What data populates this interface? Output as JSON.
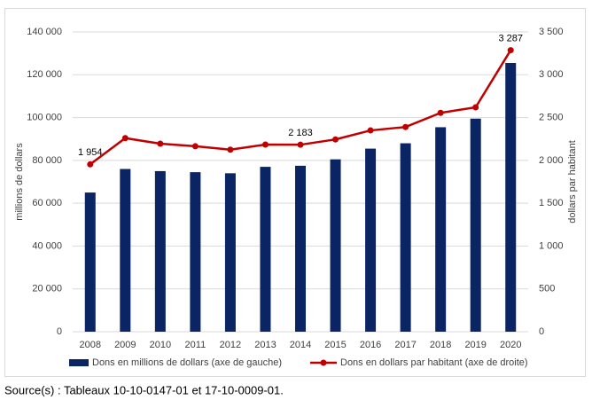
{
  "chart_data": {
    "type": "bar-line",
    "y_label": "millions de dollars",
    "y2_label": "dollars par habitant",
    "categories": [
      "2008",
      "2009",
      "2010",
      "2011",
      "2012",
      "2013",
      "2014",
      "2015",
      "2016",
      "2017",
      "2018",
      "2019",
      "2020"
    ],
    "series": [
      {
        "name": "Dons en millions de dollars (axe de gauche)",
        "color": "#0b2463",
        "type": "bar",
        "values": [
          65000,
          76000,
          75000,
          74500,
          74000,
          77000,
          77500,
          80500,
          85500,
          88000,
          95500,
          99500,
          125500
        ]
      },
      {
        "name": "Dons en dollars par habitant (axe de droite)",
        "color": "#c00000",
        "type": "line",
        "axis": "y2",
        "values": [
          1954,
          2260,
          2195,
          2165,
          2125,
          2185,
          2183,
          2245,
          2350,
          2390,
          2555,
          2620,
          3287
        ],
        "value_labels": [
          "1 954",
          null,
          null,
          null,
          null,
          null,
          "2 183",
          null,
          null,
          null,
          null,
          null,
          "3 287"
        ]
      }
    ],
    "ylim": [
      0,
      140000
    ],
    "yticks": [
      0,
      {
        "value": 20000,
        "label": "20 000"
      },
      {
        "value": 40000,
        "label": "40 000"
      },
      {
        "value": 60000,
        "label": "60 000"
      },
      {
        "value": 80000,
        "label": "80 000"
      },
      {
        "value": 100000,
        "label": "100 000"
      },
      {
        "value": 120000,
        "label": "120 000"
      },
      {
        "value": 140000,
        "label": "140 000"
      }
    ],
    "y2lim": [
      0,
      3500
    ],
    "y2ticks": [
      0,
      500,
      {
        "value": 1000,
        "label": "1 000"
      },
      {
        "value": 1500,
        "label": "1 500"
      },
      {
        "value": 2000,
        "label": "2 000"
      },
      {
        "value": 2500,
        "label": "2 500"
      },
      {
        "value": 3000,
        "label": "3 000"
      },
      {
        "value": 3500,
        "label": "3 500"
      }
    ],
    "grid": true,
    "legend": "bottom"
  },
  "source": "Source(s) : Tableaux 10-10-0147-01 et 17-10-0009-01."
}
